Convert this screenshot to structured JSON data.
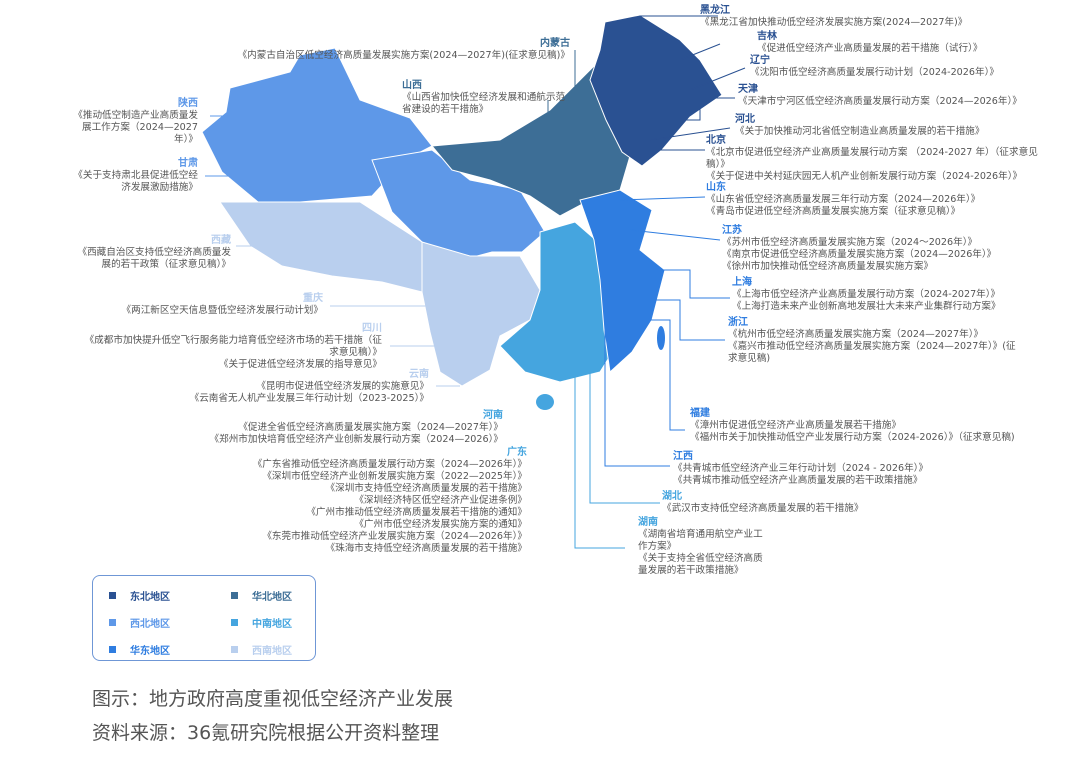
{
  "regions": {
    "northeast": {
      "label": "东北地区",
      "color": "#2a5192"
    },
    "north": {
      "label": "华北地区",
      "color": "#3d6e96"
    },
    "northwest": {
      "label": "西北地区",
      "color": "#5e98e8"
    },
    "centralsouth": {
      "label": "中南地区",
      "color": "#45a5df"
    },
    "east": {
      "label": "华东地区",
      "color": "#2f7de0"
    },
    "southwest": {
      "label": "西南地区",
      "color": "#b9cfee"
    }
  },
  "provinces": [
    {
      "name": "黑龙江",
      "region": "northeast",
      "docs": [
        "《黑龙江省加快推动低空经济发展实施方案(2024—2027年)》"
      ]
    },
    {
      "name": "吉林",
      "region": "northeast",
      "docs": [
        "《促进低空经济产业高质量发展的若干措施（试行）》"
      ]
    },
    {
      "name": "辽宁",
      "region": "northeast",
      "docs": [
        "《沈阳市低空经济高质量发展行动计划（2024-2026年）》"
      ]
    },
    {
      "name": "天津",
      "region": "northeast",
      "docs": [
        "《天津市宁河区低空经济高质量发展行动方案（2024—2026年）》"
      ]
    },
    {
      "name": "河北",
      "region": "northeast",
      "docs": [
        "《关于加快推动河北省低空制造业高质量发展的若干措施》"
      ]
    },
    {
      "name": "北京",
      "region": "northeast",
      "docs": [
        "《北京市促进低空经济产业高质量发展行动方案 （2024-2027 年）（征求意见稿）》",
        "《关于促进中关村延庆园无人机产业创新发展行动方案（2024-2026年）》"
      ]
    },
    {
      "name": "山东",
      "region": "east",
      "docs": [
        "《山东省低空经济高质量发展三年行动方案（2024—2026年）》",
        "《青岛市促进低空经济高质量发展实施方案（征求意见稿）》"
      ]
    },
    {
      "name": "江苏",
      "region": "east",
      "docs": [
        "《苏州市低空经济高质量发展实施方案（2024～2026年）》",
        "《南京市促进低空经济高质量发展实施方案（2024—2026年）》",
        "《徐州市加快推动低空经济高质量发展实施方案》"
      ]
    },
    {
      "name": "上海",
      "region": "east",
      "docs": [
        "《上海市低空经济产业高质量发展行动方案（2024-2027年）》",
        "《上海打造未来产业创新高地发展壮大未来产业集群行动方案》"
      ]
    },
    {
      "name": "浙江",
      "region": "east",
      "docs": [
        "《杭州市低空经济高质量发展实施方案（2024—2027年）》",
        "《嘉兴市推动低空经济高质量发展实施方案（2024—2027年）》(征求意见稿)"
      ]
    },
    {
      "name": "福建",
      "region": "east",
      "docs": [
        "《漳州市促进低空经济产业高质量发展若干措施》",
        "《福州市关于加快推动低空产业发展行动方案（2024-2026）》（征求意见稿)"
      ]
    },
    {
      "name": "江西",
      "region": "east",
      "docs": [
        "《共青城市低空经济产业三年行动计划（2024 - 2026年）》",
        "《共青城市推动低空经济产业高质量发展的若干政策措施》"
      ]
    },
    {
      "name": "湖北",
      "region": "centralsouth",
      "docs": [
        "《武汉市支持低空经济高质量发展的若干措施》"
      ]
    },
    {
      "name": "湖南",
      "region": "centralsouth",
      "docs": [
        "《湖南省培育通用航空产业工作方案》",
        "《关于支持全省低空经济高质量发展的若干政策措施》"
      ]
    },
    {
      "name": "内蒙古",
      "region": "north",
      "docs": [
        "《内蒙古自治区低空经济高质量发展实施方案(2024—2027年)(征求意见稿)》"
      ]
    },
    {
      "name": "山西",
      "region": "north",
      "docs": [
        "《山西省加快低空经济发展和通航示范省建设的若干措施》"
      ]
    },
    {
      "name": "陕西",
      "region": "northwest",
      "docs": [
        "《推动低空制造产业高质量发展工作方案（2024—2027年）》"
      ]
    },
    {
      "name": "甘肃",
      "region": "northwest",
      "docs": [
        "《关于支持肃北县促进低空经济发展激励措施》"
      ]
    },
    {
      "name": "西藏",
      "region": "southwest",
      "docs": [
        "《西藏自治区支持低空经济高质量发展的若干政策（征求意见稿）》"
      ]
    },
    {
      "name": "重庆",
      "region": "southwest",
      "docs": [
        "《两江新区空天信息暨低空经济发展行动计划》"
      ]
    },
    {
      "name": "四川",
      "region": "southwest",
      "docs": [
        "《成都市加快提升低空飞行服务能力培育低空经济市场的若干措施（征求意见稿）》",
        "《关于促进低空经济发展的指导意见》"
      ]
    },
    {
      "name": "云南",
      "region": "southwest",
      "docs": [
        "《昆明市促进低空经济发展的实施意见》",
        "《云南省无人机产业发展三年行动计划（2023-2025）》"
      ]
    },
    {
      "name": "河南",
      "region": "centralsouth",
      "docs": [
        "《促进全省低空经济高质量发展实施方案（2024—2027年）》",
        "《郑州市加快培育低空经济产业创新发展行动方案（2024—2026）》"
      ]
    },
    {
      "name": "广东",
      "region": "centralsouth",
      "docs": [
        "《广东省推动低空经济高质量发展行动方案（2024—2026年）》",
        "《深圳市低空经济产业创新发展实施方案（2022—2025年）》",
        "《深圳市支持低空经济高质量发展的若干措施》",
        "《深圳经济特区低空经济产业促进条例》",
        "《广州市推动低空经济高质量发展若干措施的通知》",
        "《广州市低空经济发展实施方案的通知》",
        "《东莞市推动低空经济产业发展实施方案（2024—2026年）》",
        "《珠海市支持低空经济高质量发展的若干措施》"
      ]
    }
  ],
  "caption": {
    "title": "图示：地方政府高度重视低空经济产业发展",
    "source": "资料来源：36氪研究院根据公开资料整理"
  }
}
